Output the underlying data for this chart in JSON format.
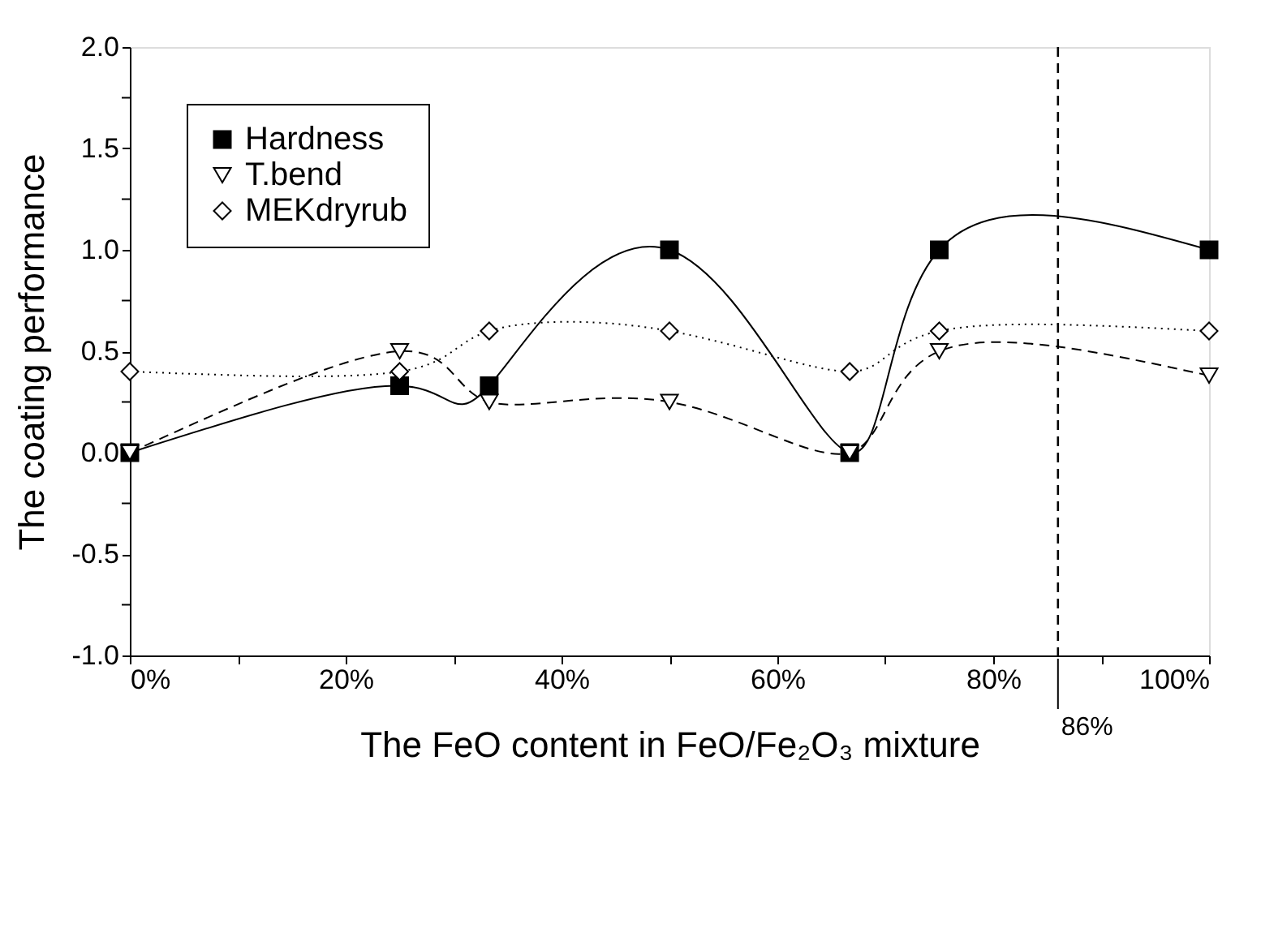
{
  "chart_data": {
    "type": "line",
    "xlabel": "The FeO content in FeO/Fe₂O₃ mixture",
    "ylabel": "The coating performance",
    "x": [
      0,
      25,
      33.3,
      50,
      66.7,
      75,
      100
    ],
    "series": [
      {
        "name": "Hardness",
        "color": "#000000",
        "marker": "square",
        "line_style": "solid",
        "values": [
          0,
          0.33,
          0.33,
          1.0,
          0,
          1.0,
          1.0
        ]
      },
      {
        "name": "T.bend",
        "color": "#000000",
        "marker": "triangle",
        "line_style": "dashed",
        "values": [
          0,
          0.5,
          0.25,
          0.25,
          0,
          0.5,
          0.38
        ]
      },
      {
        "name": "MEKdryrub",
        "color": "#000000",
        "marker": "diamond",
        "line_style": "dotted",
        "values": [
          0.4,
          0.4,
          0.6,
          0.6,
          0.4,
          0.6,
          0.6
        ]
      }
    ],
    "xlim": [
      0,
      100
    ],
    "ylim": [
      -1.0,
      2.0
    ],
    "xticks": [
      {
        "value": 0,
        "label": "0%"
      },
      {
        "value": 10,
        "label": null
      },
      {
        "value": 20,
        "label": "20%"
      },
      {
        "value": 30,
        "label": null
      },
      {
        "value": 40,
        "label": "40%"
      },
      {
        "value": 50,
        "label": null
      },
      {
        "value": 60,
        "label": "60%"
      },
      {
        "value": 70,
        "label": null
      },
      {
        "value": 80,
        "label": "80%"
      },
      {
        "value": 90,
        "label": null
      },
      {
        "value": 100,
        "label": "100%"
      }
    ],
    "yticks": [
      {
        "value": -1.0,
        "label": "-1.0"
      },
      {
        "value": -0.75,
        "label": null
      },
      {
        "value": -0.5,
        "label": "-0.5"
      },
      {
        "value": -0.25,
        "label": null
      },
      {
        "value": 0,
        "label": "0.0"
      },
      {
        "value": 0.25,
        "label": null
      },
      {
        "value": 0.5,
        "label": "0.5"
      },
      {
        "value": 0.75,
        "label": null
      },
      {
        "value": 1.0,
        "label": "1.0"
      },
      {
        "value": 1.25,
        "label": null
      },
      {
        "value": 1.5,
        "label": "1.5"
      },
      {
        "value": 1.75,
        "label": null
      },
      {
        "value": 2.0,
        "label": "2.0"
      }
    ],
    "ref_lines": [
      {
        "axis": "x",
        "value": 86,
        "label": "86%",
        "line_style": "dashed",
        "color": "#000000"
      }
    ],
    "grid": false,
    "legend": "top left"
  }
}
